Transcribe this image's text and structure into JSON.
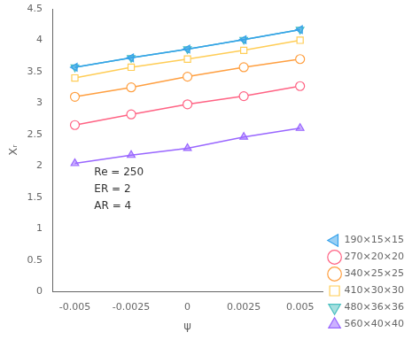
{
  "chart_data": {
    "type": "line",
    "x": [
      -0.005,
      -0.0025,
      0,
      0.0025,
      0.005
    ],
    "series": [
      {
        "name": "190×15×15",
        "values": [
          3.57,
          3.72,
          3.86,
          4.01,
          4.17
        ],
        "marker": "triangle-left"
      },
      {
        "name": "270×20×20",
        "values": [
          2.65,
          2.82,
          2.98,
          3.11,
          3.27
        ],
        "marker": "circle-open"
      },
      {
        "name": "340×25×25",
        "values": [
          3.1,
          3.25,
          3.42,
          3.57,
          3.7
        ],
        "marker": "circle-open"
      },
      {
        "name": "410×30×30",
        "values": [
          3.4,
          3.57,
          3.7,
          3.84,
          4.0
        ],
        "marker": "square-open"
      },
      {
        "name": "480×36×36",
        "values": [
          3.57,
          3.72,
          3.86,
          4.01,
          4.17
        ],
        "marker": "triangle-down"
      },
      {
        "name": "560×40×40",
        "values": [
          2.04,
          2.17,
          2.28,
          2.46,
          2.6
        ],
        "marker": "triangle-up"
      }
    ],
    "xlabel": "ψ",
    "ylabel": "Xᵣ",
    "xlim": [
      -0.006,
      0.006
    ],
    "xticks": [
      -0.005,
      -0.0025,
      0,
      0.0025,
      0.005
    ],
    "ylim": [
      0,
      4.5
    ],
    "yticks": [
      0,
      0.5,
      1,
      1.5,
      2,
      2.5,
      3,
      3.5,
      4,
      4.5
    ],
    "annotation": "Re = 250\nER = 2\nAR = 4",
    "legend": "lower right",
    "grid": false
  }
}
